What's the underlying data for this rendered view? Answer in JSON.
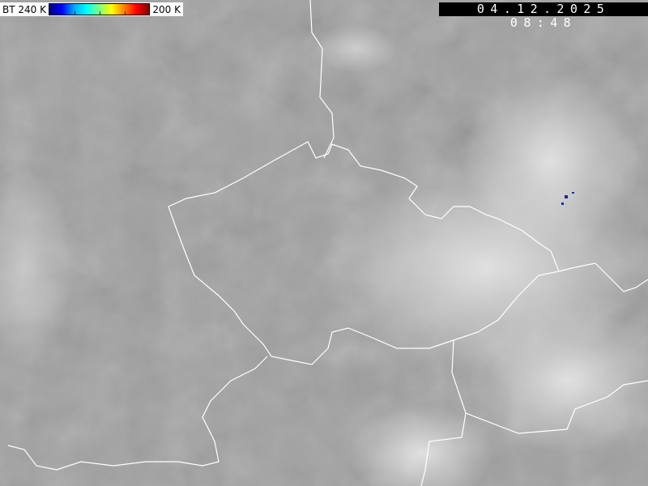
{
  "legend": {
    "label_min": "BT 240 K",
    "label_max": "200 K",
    "colors": [
      "#000080",
      "#0000ff",
      "#00aaff",
      "#00ffff",
      "#80ff80",
      "#ffff00",
      "#ff8000",
      "#ff0000",
      "#800000"
    ]
  },
  "timestamp": "04.12.2025 08:48",
  "colors": {
    "background": "#a0a0a0",
    "borders": "#ffffff"
  }
}
